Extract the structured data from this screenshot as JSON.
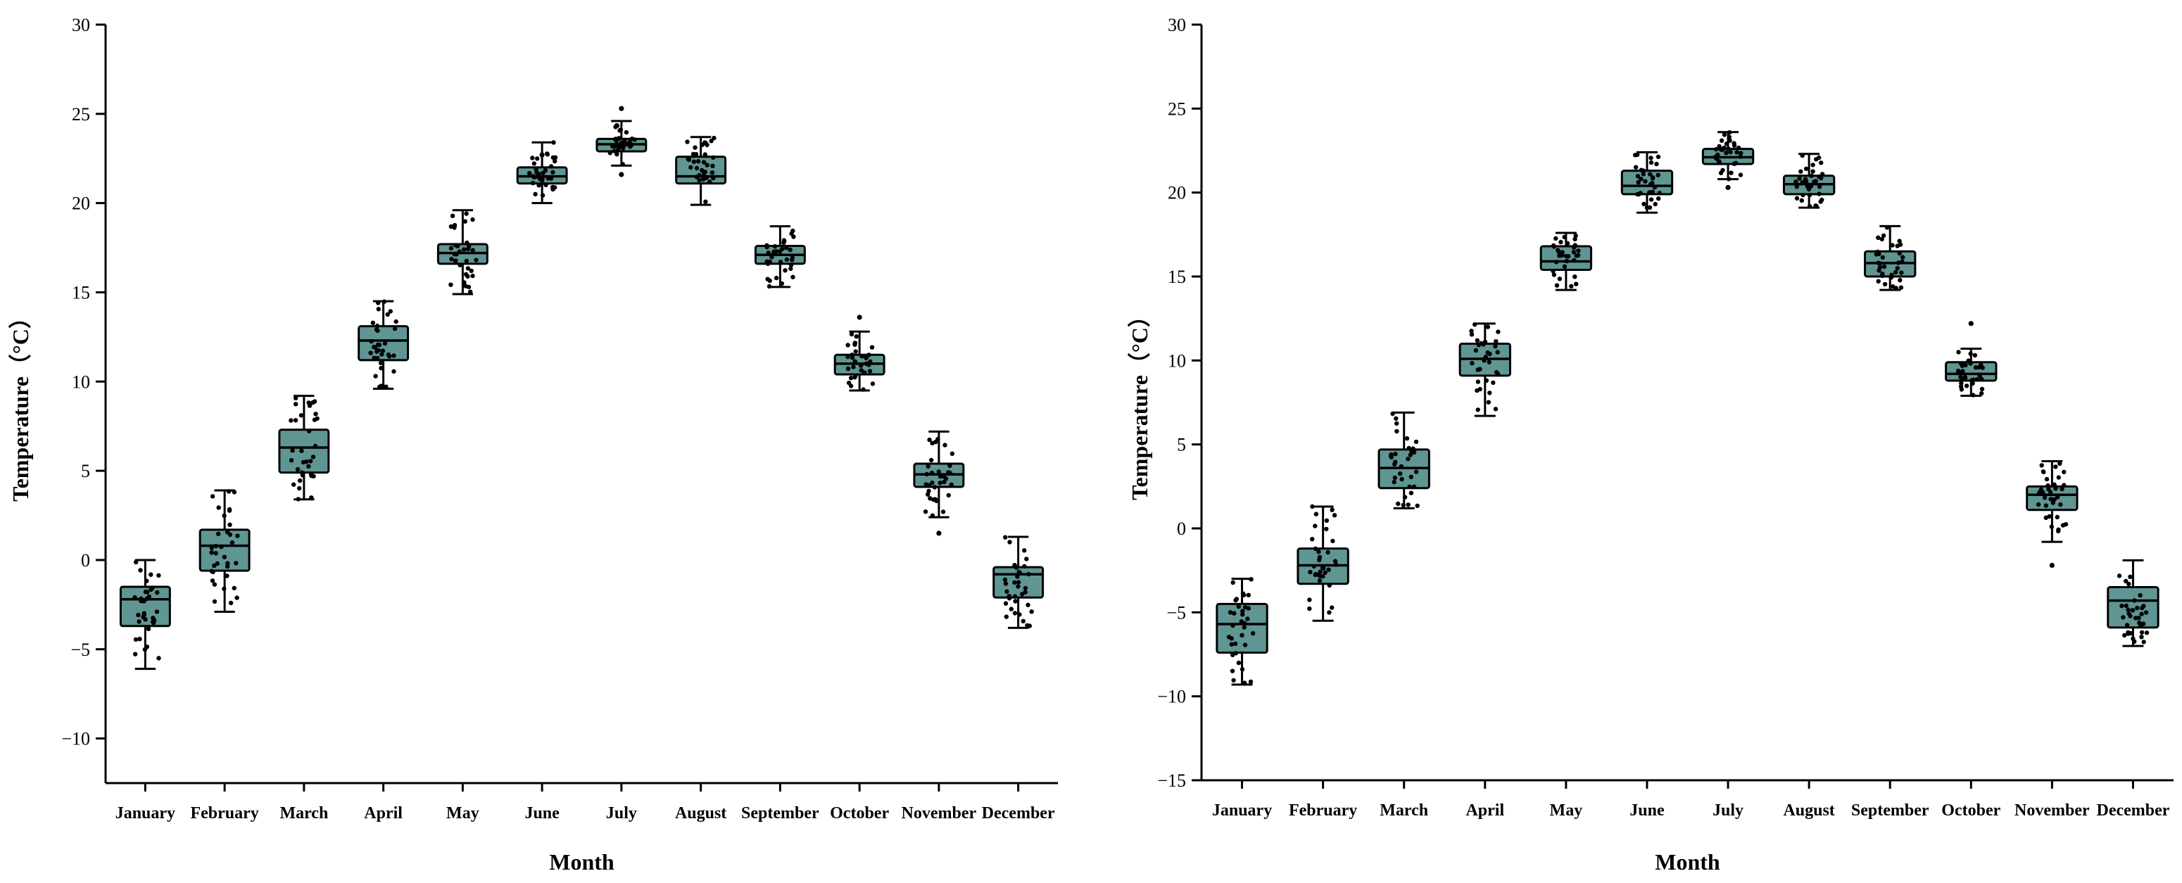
{
  "chart_data": [
    {
      "type": "box",
      "title": "",
      "xlabel": "Month",
      "ylabel": "Temperature（°C）",
      "ylim": [
        -12.5,
        30
      ],
      "yticks": [
        -10,
        -5,
        0,
        5,
        10,
        15,
        20,
        25,
        30
      ],
      "ytick_labels": [
        "−10",
        "−5",
        "0",
        "5",
        "10",
        "15",
        "20",
        "25",
        "30"
      ],
      "categories": [
        "January",
        "February",
        "March",
        "April",
        "May",
        "June",
        "July",
        "August",
        "September",
        "October",
        "November",
        "December"
      ],
      "boxes": [
        {
          "min": -6.1,
          "q1": -3.7,
          "median": -2.2,
          "q3": -1.5,
          "max": 0.0
        },
        {
          "min": -2.9,
          "q1": -0.6,
          "median": 0.8,
          "q3": 1.7,
          "max": 3.9
        },
        {
          "min": 3.4,
          "q1": 4.9,
          "median": 6.3,
          "q3": 7.3,
          "max": 9.2
        },
        {
          "min": 9.6,
          "q1": 11.2,
          "median": 12.3,
          "q3": 13.1,
          "max": 14.5
        },
        {
          "min": 14.9,
          "q1": 16.6,
          "median": 17.2,
          "q3": 17.7,
          "max": 19.6
        },
        {
          "min": 20.0,
          "q1": 21.1,
          "median": 21.5,
          "q3": 22.0,
          "max": 23.4
        },
        {
          "min": 22.1,
          "q1": 22.9,
          "median": 23.3,
          "q3": 23.6,
          "max": 24.6
        },
        {
          "min": 19.9,
          "q1": 21.1,
          "median": 21.5,
          "q3": 22.6,
          "max": 23.7
        },
        {
          "min": 15.3,
          "q1": 16.6,
          "median": 17.1,
          "q3": 17.6,
          "max": 18.7
        },
        {
          "min": 9.5,
          "q1": 10.4,
          "median": 11.0,
          "q3": 11.5,
          "max": 12.8
        },
        {
          "min": 2.4,
          "q1": 4.1,
          "median": 4.8,
          "q3": 5.4,
          "max": 7.2
        },
        {
          "min": -3.8,
          "q1": -2.1,
          "median": -0.8,
          "q3": -0.4,
          "max": 1.3
        }
      ],
      "outliers": [
        {
          "category": "July",
          "value": 25.3
        },
        {
          "category": "October",
          "value": 13.6
        },
        {
          "category": "November",
          "value": 1.5
        },
        {
          "category": "June",
          "value": 22.7
        },
        {
          "category": "July",
          "value": 21.6
        }
      ]
    },
    {
      "type": "box",
      "title": "",
      "xlabel": "Month",
      "ylabel": "Temperature（°C）",
      "ylim": [
        -15,
        30
      ],
      "yticks": [
        -15,
        -10,
        -5,
        0,
        5,
        10,
        15,
        20,
        25,
        30
      ],
      "ytick_labels": [
        "−15",
        "−10",
        "−5",
        "0",
        "5",
        "10",
        "15",
        "20",
        "25",
        "30"
      ],
      "categories": [
        "January",
        "February",
        "March",
        "April",
        "May",
        "June",
        "July",
        "August",
        "September",
        "October",
        "November",
        "December"
      ],
      "boxes": [
        {
          "min": -9.3,
          "q1": -7.4,
          "median": -5.7,
          "q3": -4.5,
          "max": -3.0
        },
        {
          "min": -5.5,
          "q1": -3.3,
          "median": -2.2,
          "q3": -1.2,
          "max": 1.3
        },
        {
          "min": 1.2,
          "q1": 2.4,
          "median": 3.6,
          "q3": 4.7,
          "max": 6.9
        },
        {
          "min": 6.7,
          "q1": 9.1,
          "median": 10.1,
          "q3": 11.0,
          "max": 12.2
        },
        {
          "min": 14.2,
          "q1": 15.4,
          "median": 15.9,
          "q3": 16.8,
          "max": 17.6
        },
        {
          "min": 18.8,
          "q1": 19.9,
          "median": 20.4,
          "q3": 21.3,
          "max": 22.4
        },
        {
          "min": 20.8,
          "q1": 21.7,
          "median": 22.1,
          "q3": 22.6,
          "max": 23.6
        },
        {
          "min": 19.1,
          "q1": 19.9,
          "median": 20.5,
          "q3": 21.0,
          "max": 22.3
        },
        {
          "min": 14.2,
          "q1": 15.0,
          "median": 15.8,
          "q3": 16.5,
          "max": 18.0
        },
        {
          "min": 7.9,
          "q1": 8.8,
          "median": 9.2,
          "q3": 9.9,
          "max": 10.7
        },
        {
          "min": -0.8,
          "q1": 1.1,
          "median": 2.0,
          "q3": 2.5,
          "max": 4.0
        },
        {
          "min": -7.0,
          "q1": -5.9,
          "median": -4.3,
          "q3": -3.5,
          "max": -1.9
        }
      ],
      "outliers": [
        {
          "category": "October",
          "value": 12.2
        },
        {
          "category": "November",
          "value": -2.2
        },
        {
          "category": "July",
          "value": 20.3
        }
      ]
    }
  ]
}
